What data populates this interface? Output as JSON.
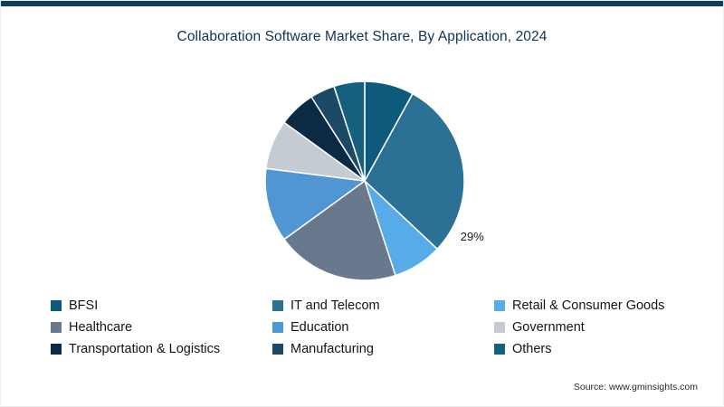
{
  "page": {
    "top_bar_color": "#0e3e5c",
    "background_color": "#ffffff"
  },
  "source": "Source: www.gminsights.com",
  "chart_data": {
    "type": "pie",
    "title": "Collaboration Software Market Share, By Application, 2024",
    "unit": "%",
    "start_angle_deg_from_top": 0,
    "direction": "clockwise",
    "legend_position": "bottom",
    "data_labels_shown": [
      "IT and Telecom"
    ],
    "slices": [
      {
        "label": "BFSI",
        "value": 8,
        "color": "#0e5a7d"
      },
      {
        "label": "IT and Telecom",
        "value": 29,
        "color": "#2b7095",
        "data_label": "29%"
      },
      {
        "label": "Retail & Consumer Goods",
        "value": 8,
        "color": "#57abe8"
      },
      {
        "label": "Healthcare",
        "value": 20,
        "color": "#68798d"
      },
      {
        "label": "Education",
        "value": 12,
        "color": "#4f96d3"
      },
      {
        "label": "Government",
        "value": 8,
        "color": "#c4cbd2"
      },
      {
        "label": "Transportation & Logistics",
        "value": 6,
        "color": "#0b2b45"
      },
      {
        "label": "Manufacturing",
        "value": 4,
        "color": "#1c4a66"
      },
      {
        "label": "Others",
        "value": 5,
        "color": "#15607f"
      }
    ]
  }
}
